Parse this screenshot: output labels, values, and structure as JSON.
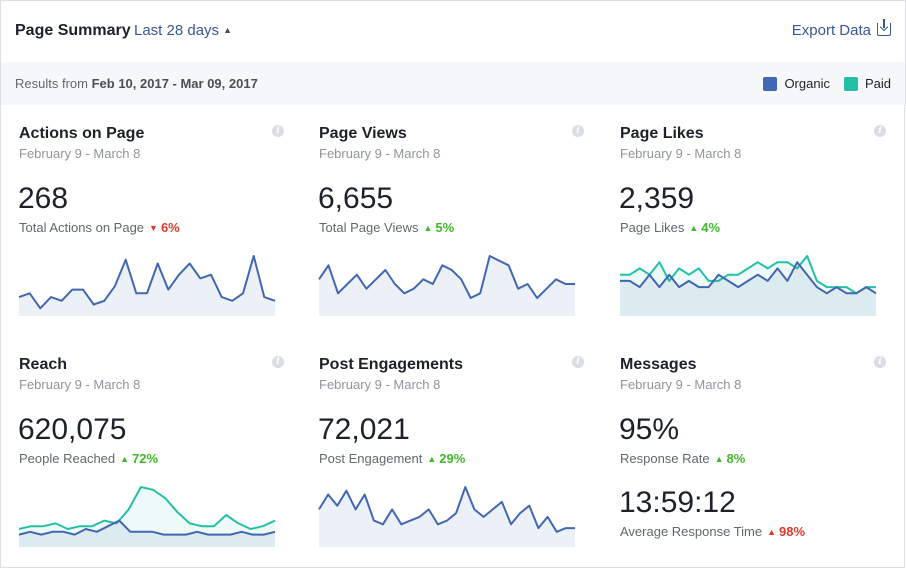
{
  "header": {
    "title": "Page Summary",
    "range": "Last 28 days",
    "export": "Export Data"
  },
  "results": {
    "prefix": "Results from",
    "dates": "Feb 10, 2017 - Mar 09, 2017"
  },
  "legend": [
    {
      "name": "Organic",
      "color": "#4267b2"
    },
    {
      "name": "Paid",
      "color": "#23c0a5"
    }
  ],
  "cards": [
    {
      "title": "Actions on Page",
      "date": "February 9 - March 8",
      "value": "268",
      "label": "Total Actions on Page",
      "direction": "down",
      "pct": "6%",
      "series": {
        "organic": [
          4,
          5,
          1,
          4,
          3,
          6,
          6,
          2,
          3,
          7,
          14,
          5,
          5,
          13,
          6,
          10,
          13,
          9,
          10,
          4,
          3,
          5,
          15,
          4,
          3
        ],
        "paid": []
      }
    },
    {
      "title": "Page Views",
      "date": "February 9 - March 8",
      "value": "6,655",
      "label": "Total Page Views",
      "direction": "up",
      "pct": "5%",
      "series": {
        "organic": [
          7,
          10,
          4,
          6,
          8,
          5,
          7,
          9,
          6,
          4,
          5,
          7,
          6,
          10,
          9,
          7,
          3,
          4,
          12,
          11,
          10,
          5,
          6,
          3,
          5,
          7,
          6,
          6
        ],
        "paid": []
      }
    },
    {
      "title": "Page Likes",
      "date": "February 9 - March 8",
      "value": "2,359",
      "label": "Page Likes",
      "direction": "up",
      "pct": "4%",
      "series": {
        "organic": [
          5,
          5,
          4,
          6,
          4,
          6,
          4,
          5,
          4,
          4,
          6,
          5,
          4,
          5,
          6,
          5,
          7,
          5,
          8,
          6,
          4,
          3,
          4,
          3,
          3,
          4,
          3
        ],
        "paid": [
          6,
          6,
          7,
          6,
          8,
          5,
          7,
          6,
          7,
          5,
          5,
          6,
          6,
          7,
          8,
          7,
          8,
          8,
          7,
          9,
          5,
          4,
          4,
          4,
          3,
          4,
          4
        ]
      }
    },
    {
      "title": "Reach",
      "date": "February 9 - March 8",
      "value": "620,075",
      "label": "People Reached",
      "direction": "up",
      "pct": "72%",
      "series": {
        "organic": [
          3,
          4,
          3,
          4,
          4,
          3,
          5,
          4,
          6,
          8,
          4,
          4,
          4,
          3,
          3,
          3,
          4,
          3,
          3,
          3,
          4,
          3,
          3,
          4
        ],
        "paid": [
          5,
          6,
          6,
          7,
          5,
          6,
          6,
          8,
          7,
          12,
          20,
          19,
          16,
          11,
          7,
          6,
          6,
          10,
          7,
          5,
          6,
          8
        ]
      }
    },
    {
      "title": "Post Engagements",
      "date": "February 9 - March 8",
      "value": "72,021",
      "label": "Post Engagement",
      "direction": "up",
      "pct": "29%",
      "series": {
        "organic": [
          9,
          13,
          10,
          14,
          9,
          13,
          6,
          5,
          9,
          5,
          6,
          7,
          9,
          5,
          6,
          8,
          15,
          9,
          7,
          9,
          11,
          5,
          8,
          10,
          4,
          7,
          3,
          4,
          4
        ],
        "paid": []
      }
    },
    {
      "title": "Messages",
      "date": "February 9 - March 8",
      "value": "95%",
      "label": "Response Rate",
      "direction": "up",
      "pct": "8%",
      "value2": "13:59:12",
      "label2": "Average Response Time",
      "direction2": "up-red",
      "pct2": "98%",
      "series": {
        "organic": [],
        "paid": []
      }
    }
  ]
}
